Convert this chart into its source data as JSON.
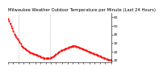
{
  "title": "Milwaukee Weather Outdoor Temperature per Minute (Last 24 Hours)",
  "line_color": "#ff0000",
  "line_style": "--",
  "line_width": 0.7,
  "marker": ".",
  "marker_size": 1.2,
  "bg_color": "#ffffff",
  "vline_color": "#999999",
  "vline_style": ":",
  "vline_positions": [
    0.1,
    0.4
  ],
  "y_values": [
    58,
    56,
    53,
    50,
    47,
    44,
    41,
    39,
    37,
    35,
    33,
    31,
    29,
    27,
    26,
    25,
    24,
    23,
    22,
    21,
    20,
    19.5,
    19,
    18.5,
    18,
    17.5,
    17,
    16.5,
    16,
    15.5,
    15,
    14.5,
    14,
    13.5,
    13,
    13,
    13,
    13,
    13,
    13,
    13,
    13.5,
    14,
    14.5,
    15,
    16,
    17,
    18,
    19,
    20,
    21,
    21.5,
    22,
    22.5,
    23,
    23.5,
    24,
    24.5,
    25,
    25.5,
    26,
    26.5,
    27,
    27,
    27,
    26.5,
    26,
    25.5,
    25,
    24.5,
    24,
    23.5,
    23,
    22.5,
    22,
    21.5,
    21,
    20.5,
    20,
    19.5,
    19,
    18.5,
    18,
    17.5,
    17,
    16.5,
    16,
    15.5,
    15,
    14.5,
    14,
    13.5,
    13,
    12.5,
    12,
    11.5,
    11,
    11,
    11,
    11
  ],
  "ylim": [
    8,
    65
  ],
  "ytick_positions": [
    10,
    20,
    30,
    40,
    50,
    60
  ],
  "ytick_labels": [
    "10",
    "20",
    "30",
    "40",
    "50",
    "60"
  ],
  "title_fontsize": 3.8,
  "tick_fontsize": 3.2,
  "n_xticks": 20
}
